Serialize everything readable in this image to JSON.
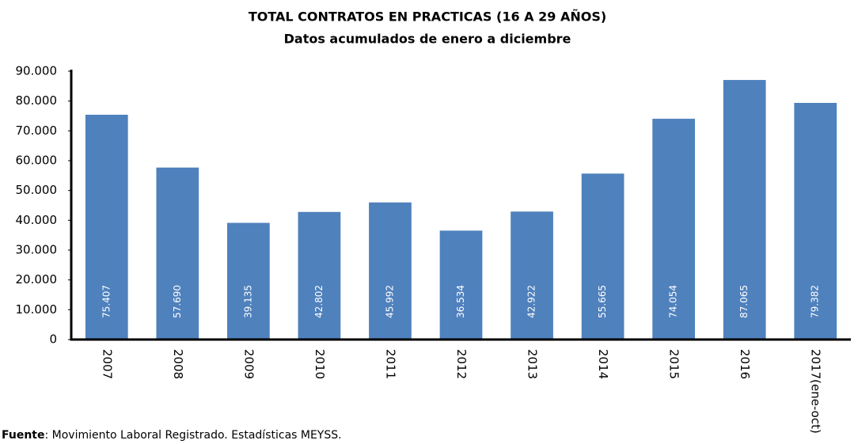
{
  "chart_data": {
    "type": "bar",
    "title": "TOTAL CONTRATOS EN PRACTICAS (16 A 29 AÑOS)",
    "subtitle": "Datos acumulados de enero a diciembre",
    "categories": [
      "2007",
      "2008",
      "2009",
      "2010",
      "2011",
      "2012",
      "2013",
      "2014",
      "2015",
      "2016",
      "2017(ene-oct)"
    ],
    "values": [
      75407,
      57690,
      39135,
      42802,
      45992,
      36534,
      42922,
      55665,
      74054,
      87065,
      79382
    ],
    "value_labels": [
      "75.407",
      "57.690",
      "39.135",
      "42.802",
      "45.992",
      "36.534",
      "42.922",
      "55.665",
      "74.054",
      "87.065",
      "79.382"
    ],
    "color": "#4f81bd",
    "ylim": [
      0,
      90000
    ],
    "yticks": [
      0,
      {
        "value": 10000,
        "label": "10.000"
      },
      {
        "value": 20000,
        "label": "20.000"
      },
      {
        "value": 30000,
        "label": "30.000"
      },
      {
        "value": 40000,
        "label": "40.000"
      },
      {
        "value": 50000,
        "label": "50.000"
      },
      {
        "value": 60000,
        "label": "60.000"
      },
      {
        "value": 70000,
        "label": "70.000"
      },
      {
        "value": 80000,
        "label": "80.000"
      },
      {
        "value": 90000,
        "label": "90.000"
      }
    ],
    "grid": false,
    "footnote_label": "Fuente",
    "footnote": ": Movimiento Laboral Registrado. Estadísticas MEYSS."
  }
}
